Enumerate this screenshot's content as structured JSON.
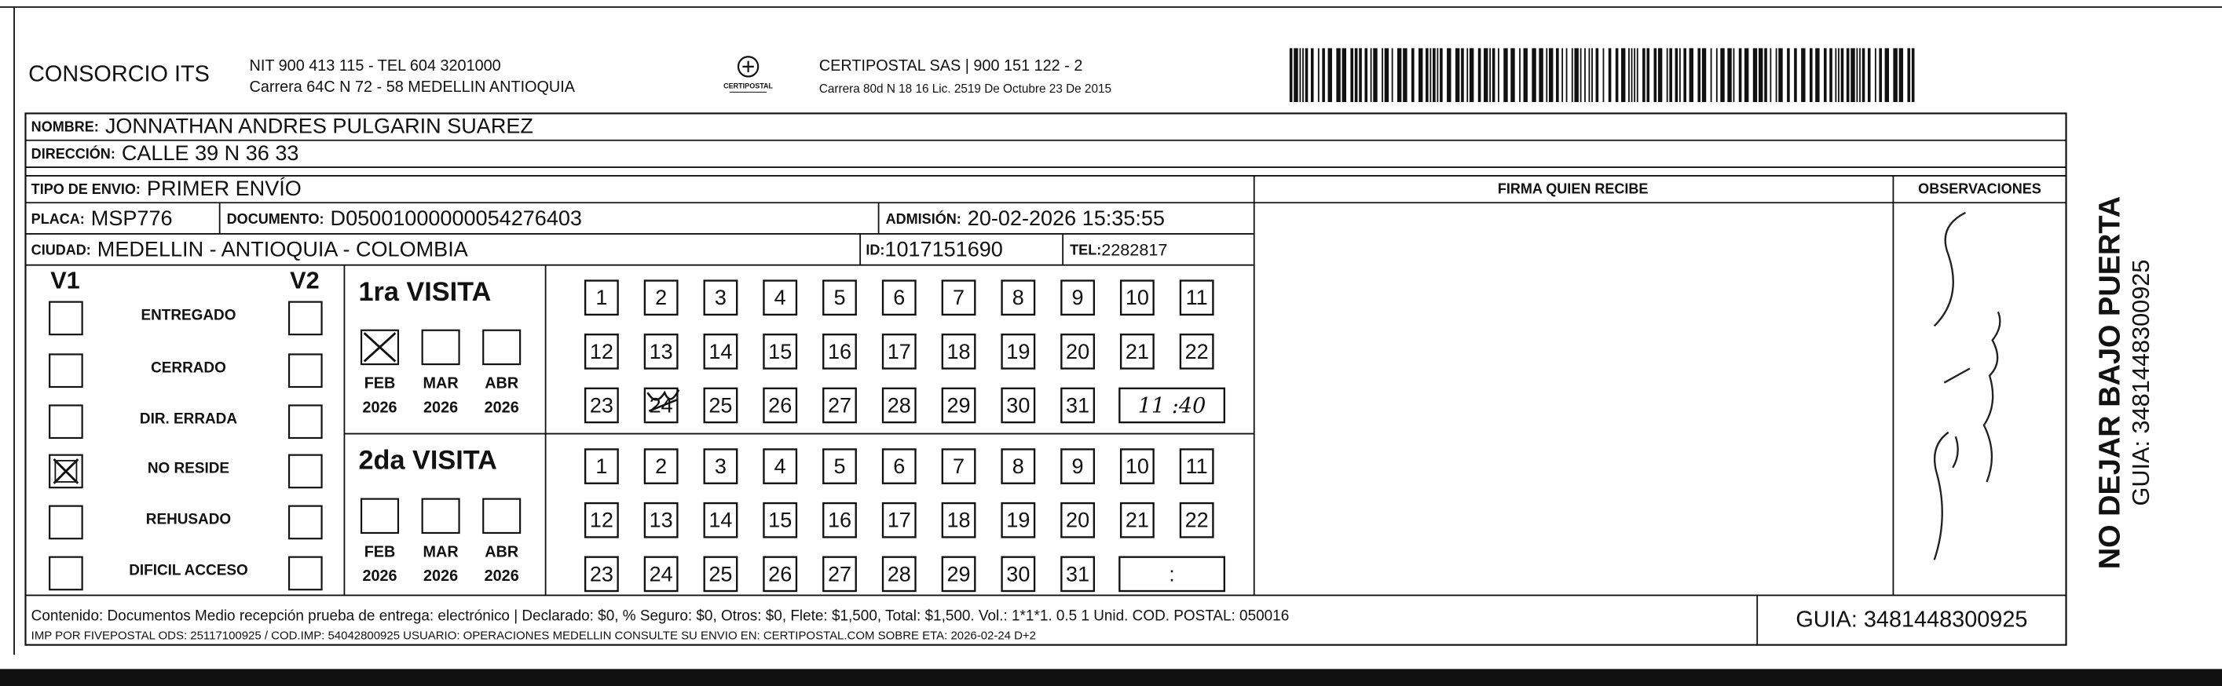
{
  "header": {
    "company": "CONSORCIO ITS",
    "company_line1": "NIT 900 413 115 - TEL 604 3201000",
    "company_line2": "Carrera 64C N 72 - 58 MEDELLIN ANTIOQUIA",
    "logo_text": "CERTIPOSTAL",
    "carrier_line1": "CERTIPOSTAL SAS | 900 151 122 - 2",
    "carrier_line2": "Carrera 80d N 18 16 Lic. 2519 De Octubre 23 De 2015"
  },
  "recipient": {
    "name": {
      "label": "NOMBRE:",
      "value": "JONNATHAN ANDRES PULGARIN SUAREZ"
    },
    "address": {
      "label": "DIRECCIÓN:",
      "value": "CALLE 39 N 36 33"
    },
    "shipment_type": {
      "label": "TIPO DE ENVIO:",
      "value": "PRIMER ENVÍO"
    },
    "plate": {
      "label": "PLACA:",
      "value": "MSP776"
    },
    "document": {
      "label": "DOCUMENTO:",
      "value": "D05001000000054276403"
    },
    "admission": {
      "label": "ADMISIÓN:",
      "value": "20-02-2026 15:35:55"
    },
    "city": {
      "label": "CIUDAD:",
      "value": "MEDELLIN - ANTIOQUIA - COLOMBIA"
    },
    "id": {
      "label": "ID:",
      "value": "1017151690"
    },
    "phone": {
      "label": "TEL:",
      "value": "2282817"
    }
  },
  "signature_header": "FIRMA QUIEN RECIBE",
  "observations_header": "OBSERVACIONES",
  "status": {
    "v1": "V1",
    "v2": "V2",
    "options": [
      "ENTREGADO",
      "CERRADO",
      "DIR. ERRADA",
      "NO RESIDE",
      "REHUSADO",
      "DIFICIL ACCESO"
    ]
  },
  "visits": [
    {
      "title": "1ra VISITA",
      "months": [
        "FEB",
        "MAR",
        "ABR"
      ],
      "years": [
        "2026",
        "2026",
        "2026"
      ],
      "days": [
        1,
        2,
        3,
        4,
        5,
        6,
        7,
        8,
        9,
        10,
        11,
        12,
        13,
        14,
        15,
        16,
        17,
        18,
        19,
        20,
        21,
        22,
        23,
        24,
        25,
        26,
        27,
        28,
        29,
        30,
        31
      ],
      "time": "11 :40"
    },
    {
      "title": "2da VISITA",
      "months": [
        "FEB",
        "MAR",
        "ABR"
      ],
      "years": [
        "2026",
        "2026",
        "2026"
      ],
      "days": [
        1,
        2,
        3,
        4,
        5,
        6,
        7,
        8,
        9,
        10,
        11,
        12,
        13,
        14,
        15,
        16,
        17,
        18,
        19,
        20,
        21,
        22,
        23,
        24,
        25,
        26,
        27,
        28,
        29,
        30,
        31
      ],
      "time": ":"
    }
  ],
  "footer": {
    "line1": "Contenido: Documentos Medio recepción prueba de entrega: electrónico | Declarado: $0, % Seguro: $0, Otros: $0, Flete: $1,500, Total: $1,500. Vol.: 1*1*1. 0.5  1 Unid. COD. POSTAL: 050016",
    "line2": "IMP POR FIVEPOSTAL ODS: 25117100925 / COD.IMP: 54042800925 USUARIO: OPERACIONES MEDELLIN CONSULTE SU ENVIO EN: CERTIPOSTAL.COM SOBRE ETA: 2026-02-24 D+2",
    "guia": "GUIA: 3481448300925"
  },
  "side": {
    "warning": "NO DEJAR BAJO PUERTA",
    "guia": "GUIA: 3481448300925"
  }
}
